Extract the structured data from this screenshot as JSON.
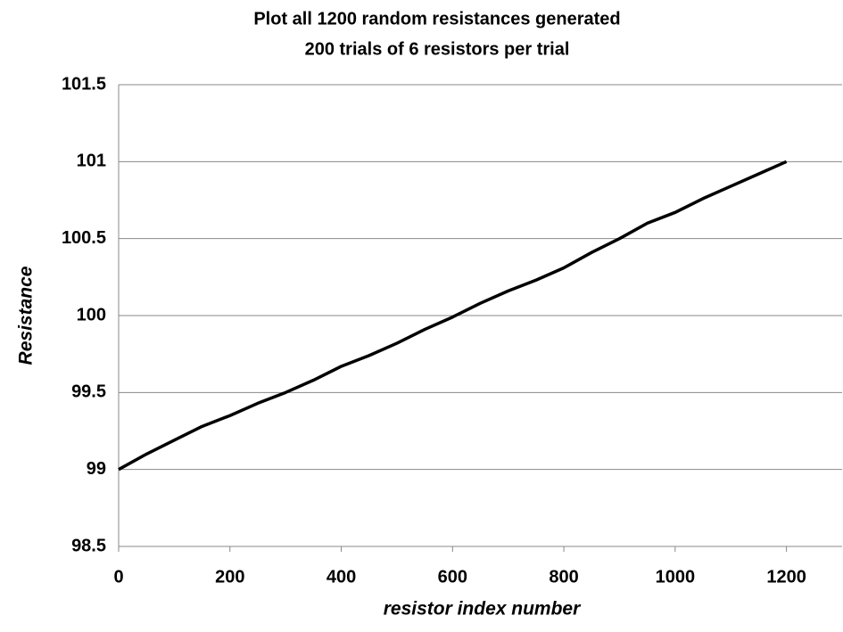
{
  "chart_data": {
    "type": "line",
    "title": "Plot all 1200 random resistances generated",
    "subtitle": "200 trials of 6 resistors per trial",
    "x_label": "resistor index number",
    "y_label": "Resistance",
    "x": [
      0,
      50,
      100,
      150,
      200,
      250,
      300,
      350,
      400,
      450,
      500,
      550,
      600,
      650,
      700,
      750,
      800,
      850,
      900,
      950,
      1000,
      1050,
      1100,
      1150,
      1200
    ],
    "series": [
      {
        "name": "Resistance",
        "color": "#000000",
        "values": [
          99.0,
          99.1,
          99.19,
          99.28,
          99.35,
          99.43,
          99.5,
          99.58,
          99.67,
          99.74,
          99.82,
          99.91,
          99.99,
          100.08,
          100.16,
          100.23,
          100.31,
          100.41,
          100.5,
          100.6,
          100.67,
          100.76,
          100.84,
          100.92,
          101.0
        ]
      }
    ],
    "xlim": [
      0,
      1300
    ],
    "xticks": [
      0,
      200,
      400,
      600,
      800,
      1000,
      1200
    ],
    "ylim": [
      98.5,
      101.5
    ],
    "yticks": [
      98.5,
      99,
      99.5,
      100,
      100.5,
      101,
      101.5
    ],
    "grid": true
  }
}
